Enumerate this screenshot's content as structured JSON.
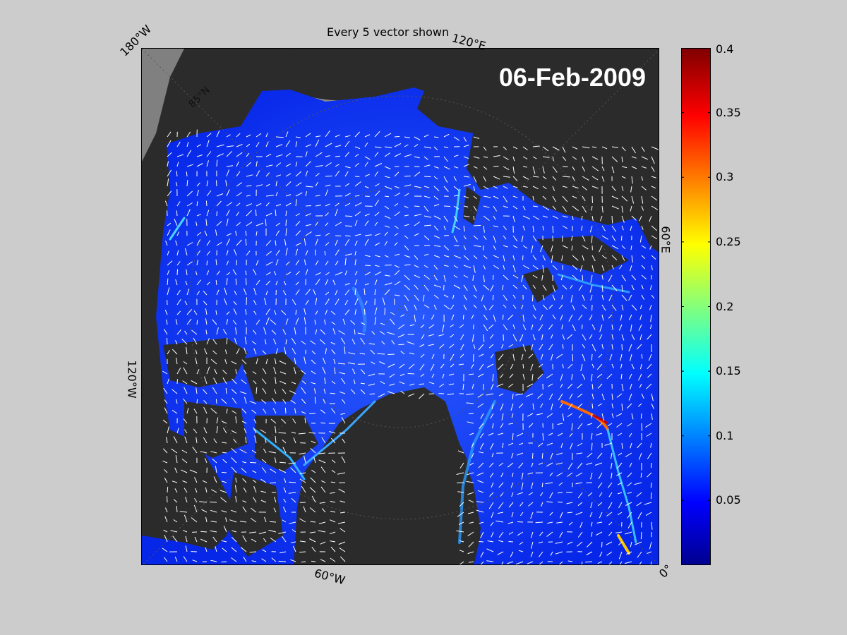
{
  "title": "Every 5 vector shown",
  "date_label": "06-Feb-2009",
  "lon_labels": {
    "tl": "180°W",
    "tr": "120°E",
    "right": "60°E",
    "br": "0°",
    "bottom": "60°W",
    "left": "120°W"
  },
  "lat_label": "85°N",
  "colorbar": {
    "colormap": "jet",
    "min": 0,
    "max": 0.4,
    "ticks": [
      "0.4",
      "0.35",
      "0.3",
      "0.25",
      "0.2",
      "0.15",
      "0.1",
      "0.05"
    ],
    "tick_values": [
      0.4,
      0.35,
      0.3,
      0.25,
      0.2,
      0.15,
      0.1,
      0.05
    ]
  },
  "colors": {
    "figure_bg": "#cccccc",
    "land": "#2b2b2b",
    "ice": "#0a2cf0",
    "vectors": "#ffffff",
    "text_on_map": "#ffffff"
  }
}
